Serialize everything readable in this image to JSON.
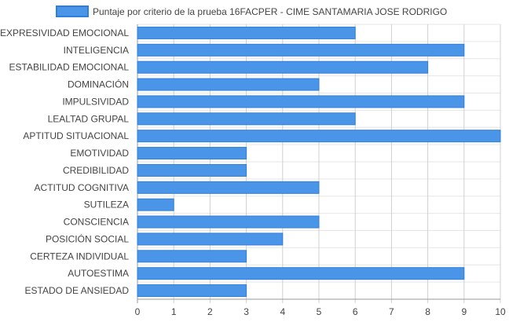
{
  "chart_data": {
    "type": "bar",
    "orientation": "horizontal",
    "legend_position": "top",
    "grid": true,
    "xlim": [
      0,
      10
    ],
    "x_ticks": [
      0,
      1,
      2,
      3,
      4,
      5,
      6,
      7,
      8,
      9,
      10
    ],
    "categories": [
      "EXPRESIVIDAD EMOCIONAL",
      "INTELIGENCIA",
      "ESTABILIDAD EMOCIONAL",
      "DOMINACIÓN",
      "IMPULSIVIDAD",
      "LEALTAD GRUPAL",
      "APTITUD SITUACIONAL",
      "EMOTIVIDAD",
      "CREDIBILIDAD",
      "ACTITUD COGNITIVA",
      "SUTILEZA",
      "CONSCIENCIA",
      "POSICIÓN SOCIAL",
      "CERTEZA INDIVIDUAL",
      "AUTOESTIMA",
      "ESTADO DE ANSIEDAD"
    ],
    "series": [
      {
        "name": "Puntaje por criterio de la prueba 16FACPER - CIME SANTAMARIA JOSE RODRIGO",
        "color": "#4a95e8",
        "values": [
          6,
          9,
          8,
          5,
          9,
          6,
          10,
          3,
          3,
          5,
          1,
          5,
          4,
          3,
          9,
          3
        ]
      }
    ]
  }
}
